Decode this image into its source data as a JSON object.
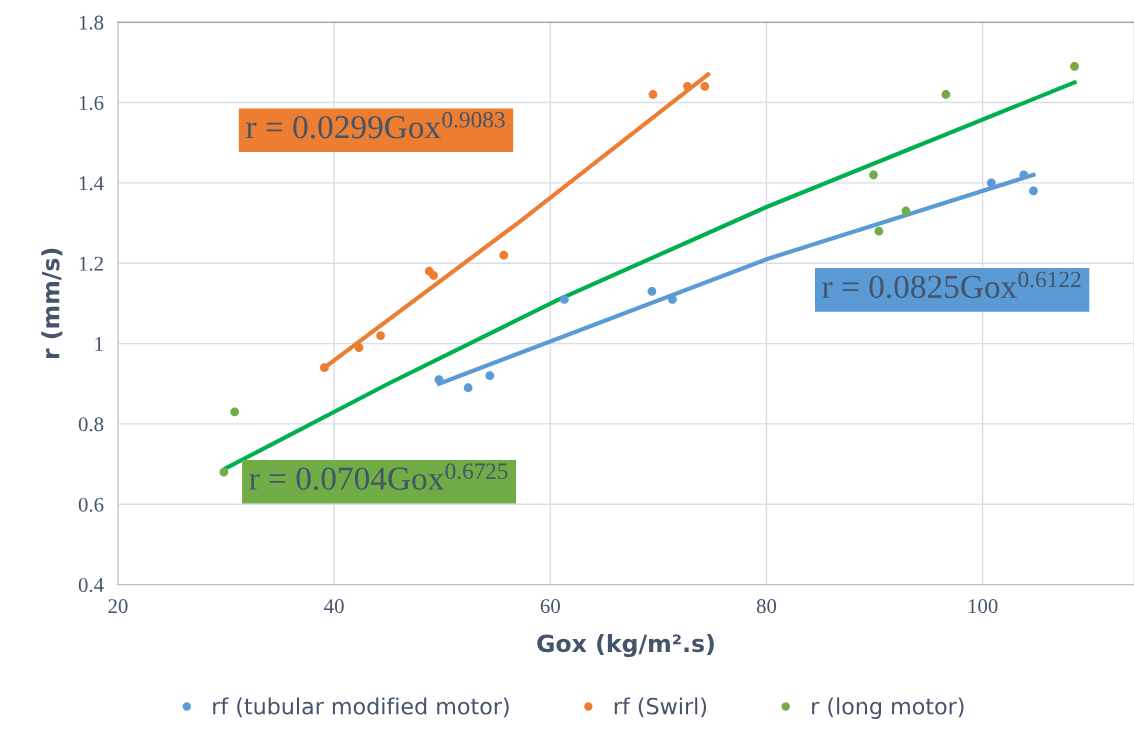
{
  "chart_data": {
    "type": "scatter",
    "xlabel": "Gox (kg/m².s)",
    "ylabel": "r (mm/s)",
    "xlim": [
      20,
      114
    ],
    "ylim": [
      0.4,
      1.8
    ],
    "xticks": [
      20,
      40,
      60,
      80,
      100
    ],
    "yticks": [
      0.4,
      0.6,
      0.8,
      1,
      1.2,
      1.4,
      1.6,
      1.8
    ],
    "grid": true,
    "legend": "bottom",
    "series": [
      {
        "name": "rf (tubular modified motor)",
        "color": "#5b9bd5",
        "marker": "circle",
        "x": [
          49.7,
          52.4,
          54.4,
          61.3,
          69.4,
          71.3,
          100.8,
          103.8,
          104.7
        ],
        "values": [
          0.91,
          0.89,
          0.92,
          1.11,
          1.13,
          1.11,
          1.4,
          1.42,
          1.38
        ]
      },
      {
        "name": "rf (Swirl)",
        "color": "#ed7d31",
        "marker": "circle",
        "x": [
          39.1,
          42.3,
          44.3,
          48.8,
          49.2,
          55.7,
          69.5,
          72.7,
          74.3
        ],
        "values": [
          0.94,
          0.99,
          1.02,
          1.18,
          1.17,
          1.22,
          1.62,
          1.64,
          1.64
        ]
      },
      {
        "name": "r (long motor)",
        "color": "#70ad47",
        "marker": "circle",
        "x": [
          29.8,
          30.8,
          89.9,
          90.4,
          92.9,
          96.6,
          108.5
        ],
        "values": [
          0.68,
          0.83,
          1.42,
          1.28,
          1.33,
          1.62,
          1.69
        ]
      },
      {
        "type": "line",
        "color": "#5b9bd5",
        "x": [
          49.7,
          80,
          104.7
        ],
        "values": [
          0.9,
          1.21,
          1.42
        ]
      },
      {
        "type": "line",
        "color": "#ed7d31",
        "x": [
          39.1,
          57,
          74.6
        ],
        "values": [
          0.94,
          1.3,
          1.67
        ]
      },
      {
        "type": "line",
        "color": "#00b050",
        "x": [
          30,
          45,
          60.8,
          80,
          108.5
        ],
        "values": [
          0.69,
          0.9,
          1.11,
          1.34,
          1.65
        ]
      }
    ],
    "annotations": [
      "r = 0.0825Gox$^{0.6122}$",
      "r = 0.0299Gox$^{0.9083}$",
      "r = 0.0704Gox$^{0.6725}$"
    ]
  }
}
